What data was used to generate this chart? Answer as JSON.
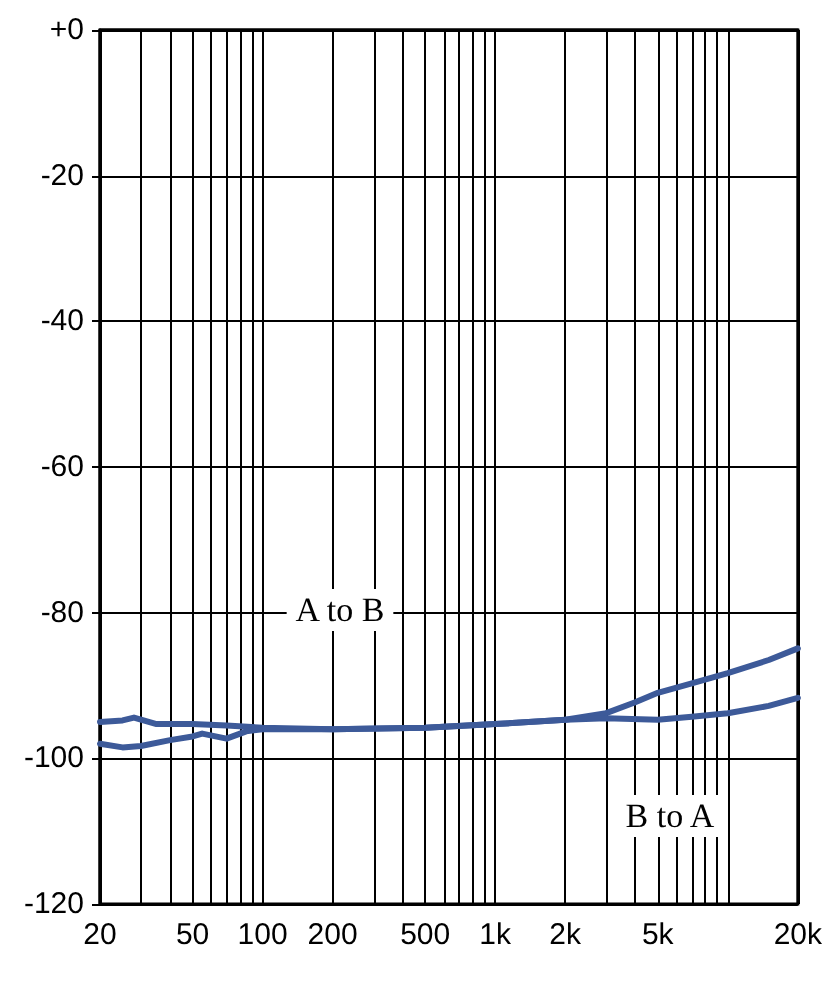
{
  "chart_data": {
    "type": "line",
    "log": "x",
    "grid": true,
    "marker": "none",
    "line_style": "solid",
    "xlim": [
      20,
      20000
    ],
    "ylim": [
      -120,
      0
    ],
    "xticks": [
      20,
      {
        "value": 30,
        "label": null
      },
      {
        "value": 40,
        "label": null
      },
      50,
      {
        "value": 60,
        "label": null
      },
      {
        "value": 70,
        "label": null
      },
      {
        "value": 80,
        "label": null
      },
      {
        "value": 90,
        "label": null
      },
      100,
      200,
      {
        "value": 300,
        "label": null
      },
      {
        "value": 400,
        "label": null
      },
      500,
      {
        "value": 600,
        "label": null
      },
      {
        "value": 700,
        "label": null
      },
      {
        "value": 800,
        "label": null
      },
      {
        "value": 900,
        "label": null
      },
      {
        "value": 1000,
        "label": "1k"
      },
      {
        "value": 2000,
        "label": "2k"
      },
      {
        "value": 3000,
        "label": null
      },
      {
        "value": 4000,
        "label": null
      },
      {
        "value": 5000,
        "label": "5k"
      },
      {
        "value": 6000,
        "label": null
      },
      {
        "value": 7000,
        "label": null
      },
      {
        "value": 8000,
        "label": null
      },
      {
        "value": 9000,
        "label": null
      },
      {
        "value": 10000,
        "label": null
      },
      {
        "value": 20000,
        "label": "20k"
      }
    ],
    "yticks": [
      {
        "value": 0,
        "label": "+0"
      },
      -20,
      -40,
      -60,
      -80,
      -100,
      -120
    ],
    "series": [
      {
        "color": "#3d5a99",
        "x": [
          20,
          25,
          28,
          35,
          50,
          70,
          100,
          200,
          500,
          1000,
          2000,
          3000,
          4000,
          5000,
          7000,
          10000,
          15000,
          20000
        ],
        "values": [
          -95,
          -94.8,
          -94.4,
          -95.3,
          -95.3,
          -95.5,
          -95.8,
          -96,
          -95.8,
          -95.3,
          -94.7,
          -93.8,
          -92.3,
          -91,
          -89.7,
          -88.3,
          -86.5,
          -84.9
        ]
      },
      {
        "color": "#3d5a99",
        "x": [
          20,
          25,
          30,
          40,
          50,
          55,
          70,
          85,
          100,
          200,
          500,
          1000,
          2000,
          3000,
          5000,
          7000,
          10000,
          15000,
          20000
        ],
        "values": [
          -98,
          -98.5,
          -98.3,
          -97.5,
          -97,
          -96.6,
          -97.3,
          -96.3,
          -96,
          -96,
          -95.8,
          -95.3,
          -94.7,
          -94.5,
          -94.7,
          -94.3,
          -93.8,
          -92.8,
          -91.7
        ]
      }
    ],
    "annotations": [
      "A to B",
      "B to A"
    ]
  }
}
